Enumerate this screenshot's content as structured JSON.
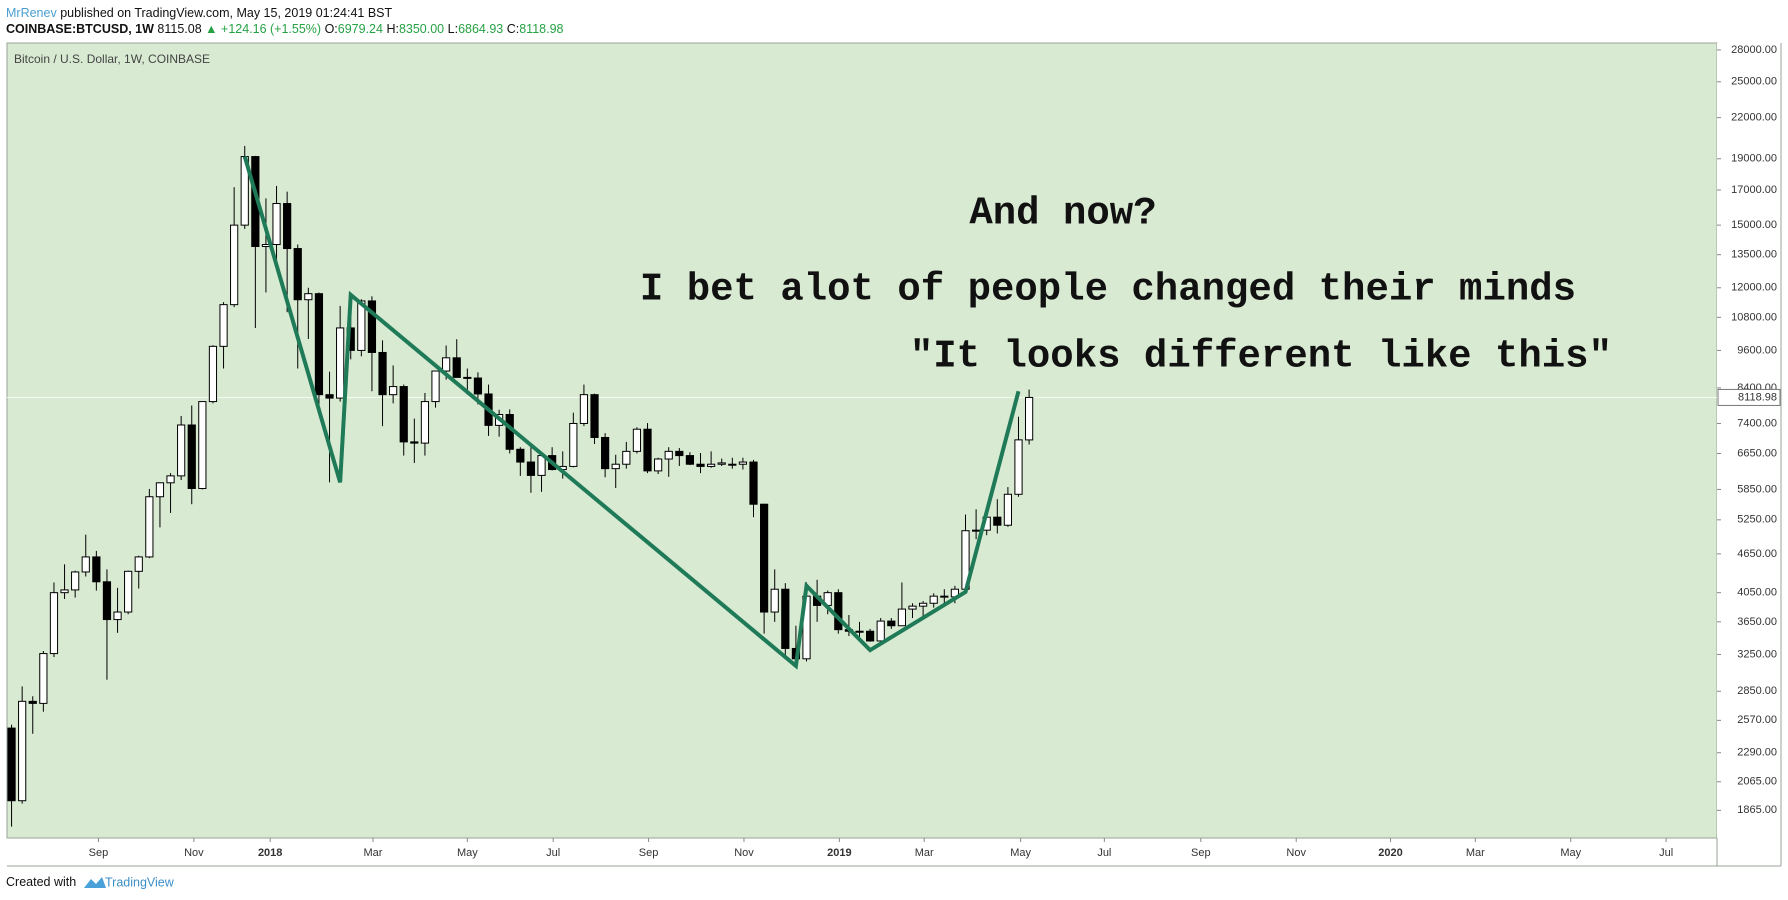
{
  "header": {
    "author": "MrRenev",
    "published": "published on TradingView.com, May 15, 2019 01:24:41 BST",
    "symbol": "COINBASE:BTCUSD, 1W",
    "price": "8115.08",
    "change": "+124.16 (+1.55%)",
    "ohlc": [
      {
        "label": "O:",
        "value": "6979.24"
      },
      {
        "label": "H:",
        "value": "8350.00"
      },
      {
        "label": "L:",
        "value": "6864.93"
      },
      {
        "label": "C:",
        "value": "8118.98"
      }
    ]
  },
  "footer": {
    "created": "Created with",
    "brand": "TradingView"
  },
  "chart_data": {
    "type": "candlestick",
    "title": "Bitcoin / U.S. Dollar, 1W, COINBASE",
    "up_color": "#ffffff",
    "down_color": "#000000",
    "background": "#d9ead3",
    "log_scale": true,
    "open": [
      2500,
      1930,
      2750,
      2730,
      3260,
      4050,
      4090,
      4360,
      4600,
      4210,
      3680,
      3780,
      4370,
      4600,
      5700,
      5990,
      6140,
      7360,
      5870,
      8000,
      9740,
      11300,
      15000,
      19150,
      13900,
      14000,
      16200,
      13800,
      11500,
      11750,
      8200,
      8100,
      10400,
      9600,
      11450,
      9530,
      8200,
      8440,
      6930,
      6900,
      8000,
      8920,
      9350,
      8720,
      8700,
      8220,
      7350,
      7640,
      6750,
      6450,
      6150,
      6600,
      6280,
      6350,
      7400,
      8200,
      7040,
      6300,
      6400,
      6700,
      7250,
      6250,
      6520,
      6700,
      6600,
      6400,
      6350,
      6400,
      6380,
      6400,
      6450,
      5550,
      3780,
      4100,
      3320,
      3200,
      4000,
      3870,
      4050,
      3550,
      3530,
      3530,
      3410,
      3660,
      3600,
      3820,
      3860,
      3900,
      4000,
      3990,
      4100,
      5050,
      5060,
      5300,
      5150,
      5750,
      6979.24
    ],
    "high": [
      2530,
      2900,
      2800,
      3290,
      4200,
      4480,
      4380,
      4980,
      4700,
      4400,
      4120,
      4380,
      4620,
      5860,
      6000,
      6200,
      7600,
      7890,
      8000,
      9780,
      11400,
      17170,
      19890,
      19200,
      16500,
      17250,
      16900,
      14000,
      12000,
      11800,
      8900,
      11250,
      11780,
      11520,
      11640,
      9950,
      9100,
      8500,
      7530,
      8250,
      8930,
      9770,
      9990,
      9000,
      8880,
      8500,
      7770,
      7780,
      6800,
      6830,
      6550,
      6800,
      6700,
      7690,
      8500,
      8230,
      7150,
      6620,
      6930,
      7300,
      7410,
      6550,
      6800,
      6780,
      6680,
      6660,
      6700,
      6530,
      6550,
      6550,
      6500,
      5560,
      4400,
      4190,
      3600,
      4200,
      4240,
      4080,
      4100,
      3740,
      3650,
      3560,
      3700,
      3700,
      4200,
      3900,
      3930,
      4040,
      4100,
      4150,
      5350,
      5450,
      5380,
      5650,
      5900,
      7580,
      8350
    ],
    "low": [
      1760,
      1910,
      2450,
      2650,
      3220,
      3960,
      3980,
      4290,
      4080,
      2970,
      3510,
      3750,
      4110,
      4580,
      5110,
      5380,
      6050,
      5550,
      5850,
      7950,
      9000,
      11200,
      14800,
      10400,
      11800,
      13000,
      11000,
      9000,
      10000,
      7700,
      6000,
      8000,
      9300,
      9400,
      8300,
      7330,
      7950,
      6600,
      6430,
      6600,
      7830,
      8650,
      8850,
      8200,
      7920,
      7080,
      7060,
      6650,
      6140,
      5780,
      5800,
      6260,
      6080,
      6330,
      7330,
      6880,
      6110,
      5880,
      6300,
      6650,
      6200,
      6180,
      6120,
      6360,
      6380,
      6200,
      6320,
      6360,
      6300,
      6280,
      5300,
      3500,
      3650,
      3220,
      3120,
      3170,
      3650,
      3750,
      3500,
      3470,
      3460,
      3400,
      3400,
      3560,
      3600,
      3700,
      3680,
      3840,
      3900,
      3900,
      4090,
      4900,
      4970,
      5000,
      5120,
      5700,
      6864.93
    ],
    "close": [
      1930,
      2750,
      2730,
      3260,
      4050,
      4090,
      4360,
      4600,
      4210,
      3680,
      3780,
      4370,
      4600,
      5700,
      5990,
      6140,
      7360,
      5870,
      8000,
      9740,
      11300,
      15000,
      19150,
      13900,
      14000,
      16200,
      13800,
      11500,
      11750,
      8200,
      8100,
      10400,
      9600,
      11450,
      9530,
      8200,
      8440,
      6930,
      6900,
      8000,
      8920,
      9350,
      8720,
      8700,
      8220,
      7350,
      7640,
      6750,
      6450,
      6150,
      6600,
      6280,
      6350,
      7400,
      8200,
      7040,
      6300,
      6400,
      6700,
      7250,
      6250,
      6520,
      6700,
      6600,
      6400,
      6350,
      6400,
      6430,
      6400,
      6450,
      5550,
      3780,
      4100,
      3320,
      3200,
      4000,
      3870,
      4050,
      3550,
      3530,
      3530,
      3410,
      3660,
      3600,
      3820,
      3860,
      3900,
      4000,
      3990,
      4100,
      5050,
      5060,
      5300,
      5150,
      5750,
      6980,
      8118.98
    ],
    "last_price": 8118.98,
    "xlim": [
      -0.43,
      160.9
    ],
    "xticks": [
      {
        "value": 8.2,
        "label": "Sep"
      },
      {
        "value": 17.2,
        "label": "Nov"
      },
      {
        "value": 24.4,
        "label": "2018"
      },
      {
        "value": 34.1,
        "label": "Mar"
      },
      {
        "value": 43.0,
        "label": "May"
      },
      {
        "value": 51.1,
        "label": "Jul"
      },
      {
        "value": 60.1,
        "label": "Sep"
      },
      {
        "value": 69.1,
        "label": "Nov"
      },
      {
        "value": 78.1,
        "label": "2019"
      },
      {
        "value": 86.1,
        "label": "Mar"
      },
      {
        "value": 95.2,
        "label": "May"
      },
      {
        "value": 103.1,
        "label": "Jul"
      },
      {
        "value": 112.2,
        "label": "Sep"
      },
      {
        "value": 121.2,
        "label": "Nov"
      },
      {
        "value": 130.1,
        "label": "2020"
      },
      {
        "value": 138.1,
        "label": "Mar"
      },
      {
        "value": 147.1,
        "label": "May"
      },
      {
        "value": 156.1,
        "label": "Jul"
      }
    ],
    "ylim": [
      1690,
      28700
    ],
    "yticks": [
      {
        "value": 1865,
        "label": "1865.00"
      },
      {
        "value": 2065,
        "label": "2065.00"
      },
      {
        "value": 2290,
        "label": "2290.00"
      },
      {
        "value": 2570,
        "label": "2570.00"
      },
      {
        "value": 2850,
        "label": "2850.00"
      },
      {
        "value": 3250,
        "label": "3250.00"
      },
      {
        "value": 3650,
        "label": "3650.00"
      },
      {
        "value": 4050,
        "label": "4050.00"
      },
      {
        "value": 4650,
        "label": "4650.00"
      },
      {
        "value": 5250,
        "label": "5250.00"
      },
      {
        "value": 5850,
        "label": "5850.00"
      },
      {
        "value": 6650,
        "label": "6650.00"
      },
      {
        "value": 7400,
        "label": "7400.00"
      },
      {
        "value": 8400,
        "label": "8400.00"
      },
      {
        "value": 9600,
        "label": "9600.00"
      },
      {
        "value": 10800,
        "label": "10800.00"
      },
      {
        "value": 12000,
        "label": "12000.00"
      },
      {
        "value": 13500,
        "label": "13500.00"
      },
      {
        "value": 15000,
        "label": "15000.00"
      },
      {
        "value": 17000,
        "label": "17000.00"
      },
      {
        "value": 19000,
        "label": "19000.00"
      },
      {
        "value": 22000,
        "label": "22000.00"
      },
      {
        "value": 25000,
        "label": "25000.00"
      },
      {
        "value": 28000,
        "label": "28000.00"
      }
    ],
    "drawing": {
      "color": "#1f7a58",
      "x": [
        22,
        31,
        32,
        74,
        75,
        81,
        90,
        95
      ],
      "y": [
        19150,
        6000,
        11700,
        3120,
        4150,
        3300,
        4060,
        8300
      ]
    },
    "annotations": [
      "And now?",
      "I bet alot of people changed their minds",
      "\"It looks different like this\""
    ]
  }
}
